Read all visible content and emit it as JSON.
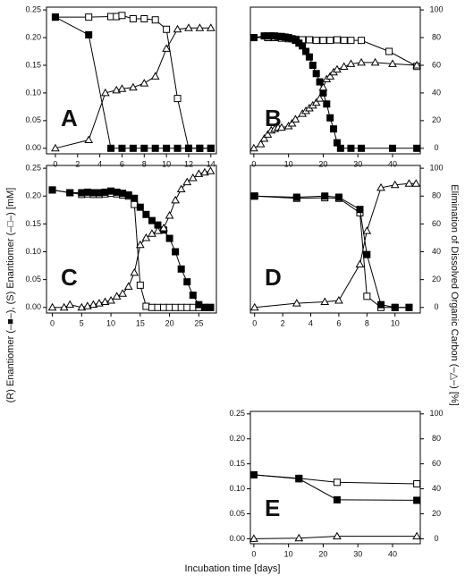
{
  "x_label": "Incubation time [days]",
  "y_label": "(R) Enantiomer (–■–), (S) Enantiomer (–□–) [mM]",
  "y2_label": "Elimination of Dissolved Organic Carbon (–△–) [%]",
  "chart_data": [
    {
      "type": "line",
      "label": "A",
      "tick_label_side": "left",
      "xlim": [
        -0.8,
        14.5
      ],
      "xticks": [
        0,
        2,
        4,
        6,
        8,
        10,
        12,
        14
      ],
      "ylim": [
        -0.01,
        0.255
      ],
      "yticks": [
        {
          "value": 0,
          "label": "0.00"
        },
        {
          "value": 0.05,
          "label": "0.05"
        },
        {
          "value": 0.1,
          "label": "0.10"
        },
        {
          "value": 0.15,
          "label": "0.15"
        },
        {
          "value": 0.2,
          "label": "0.20"
        },
        {
          "value": 0.25,
          "label": "0.25"
        }
      ],
      "y2lim": [
        -4,
        102
      ],
      "y2ticks": [
        0,
        20,
        40,
        60,
        80,
        100
      ],
      "series": [
        {
          "marker": "open-square",
          "color": "#000000",
          "x": [
            0,
            3,
            5,
            5.5,
            6,
            7,
            8,
            9,
            10,
            11,
            12,
            13,
            14
          ],
          "values": [
            0.237,
            0.237,
            0.238,
            0.238,
            0.24,
            0.234,
            0.234,
            0.232,
            0.215,
            0.09,
            0,
            0,
            0
          ]
        },
        {
          "marker": "filled-square",
          "color": "#000000",
          "x": [
            0,
            3,
            5,
            6,
            7,
            8,
            9,
            10,
            11,
            12,
            13,
            14
          ],
          "values": [
            0.237,
            0.205,
            0,
            0,
            0,
            0,
            0,
            0,
            0,
            0,
            0,
            0
          ]
        },
        {
          "marker": "triangle",
          "color": "#000000",
          "axis": "y2",
          "x": [
            0,
            3,
            4.5,
            5.5,
            6,
            7,
            8,
            9,
            10,
            11,
            12,
            13,
            14
          ],
          "values": [
            0,
            6,
            40,
            42,
            43,
            44,
            47,
            52,
            72,
            86,
            87,
            87,
            87
          ]
        }
      ]
    },
    {
      "type": "line",
      "label": "B",
      "tick_label_side": "right",
      "xlim": [
        -1,
        48
      ],
      "xticks": [
        0,
        10,
        20,
        30,
        40
      ],
      "ylim": [
        -0.01,
        0.255
      ],
      "yticks": [
        {
          "value": 0,
          "label": "0.00"
        },
        {
          "value": 0.05,
          "label": "0.05"
        },
        {
          "value": 0.1,
          "label": "0.10"
        },
        {
          "value": 0.15,
          "label": "0.15"
        },
        {
          "value": 0.2,
          "label": "0.20"
        },
        {
          "value": 0.25,
          "label": "0.25"
        }
      ],
      "y2lim": [
        -4,
        102
      ],
      "y2ticks": [
        0,
        20,
        40,
        60,
        80,
        100
      ],
      "series": [
        {
          "marker": "open-square",
          "color": "#000000",
          "x": [
            0,
            4,
            6,
            8,
            10,
            12,
            14,
            16,
            18,
            20,
            22,
            24,
            26,
            28,
            31,
            39,
            47
          ],
          "values": [
            0.2,
            0.2,
            0.2,
            0.199,
            0.198,
            0.197,
            0.196,
            0.196,
            0.195,
            0.195,
            0.195,
            0.196,
            0.195,
            0.195,
            0.195,
            0.175,
            0.148
          ]
        },
        {
          "marker": "filled-square",
          "color": "#000000",
          "x": [
            0,
            3,
            4,
            5,
            6,
            7,
            8,
            9,
            10,
            11,
            12,
            13,
            14,
            15,
            16,
            17,
            18,
            19,
            20,
            21,
            22,
            23,
            24,
            25,
            28,
            31,
            40,
            47
          ],
          "values": [
            0.2,
            0.203,
            0.203,
            0.203,
            0.203,
            0.202,
            0.202,
            0.201,
            0.2,
            0.198,
            0.195,
            0.19,
            0.185,
            0.175,
            0.165,
            0.15,
            0.135,
            0.12,
            0.1,
            0.08,
            0.055,
            0.035,
            0.01,
            0,
            0,
            0,
            0,
            0
          ]
        },
        {
          "marker": "triangle",
          "color": "#000000",
          "axis": "y2",
          "x": [
            0,
            2,
            3,
            4,
            5,
            6,
            7,
            8,
            10,
            11,
            12,
            14,
            15,
            16,
            17,
            18,
            19,
            20,
            21,
            22,
            23,
            24,
            26,
            28,
            31,
            35,
            40,
            47
          ],
          "values": [
            0,
            3,
            7,
            10,
            13,
            14,
            15,
            15,
            16,
            18,
            21,
            25,
            27,
            29,
            31,
            33,
            36,
            44,
            50,
            52,
            55,
            57,
            59,
            61,
            62,
            62,
            61,
            60
          ]
        }
      ]
    },
    {
      "type": "line",
      "label": "C",
      "tick_label_side": "left",
      "xlim": [
        -1,
        28
      ],
      "xticks": [
        0,
        5,
        10,
        15,
        20,
        25
      ],
      "ylim": [
        -0.01,
        0.255
      ],
      "yticks": [
        {
          "value": 0,
          "label": "0.00"
        },
        {
          "value": 0.05,
          "label": "0.05"
        },
        {
          "value": 0.1,
          "label": "0.10"
        },
        {
          "value": 0.15,
          "label": "0.15"
        },
        {
          "value": 0.2,
          "label": "0.20"
        },
        {
          "value": 0.25,
          "label": "0.25"
        }
      ],
      "y2lim": [
        -4,
        102
      ],
      "y2ticks": [
        0,
        20,
        40,
        60,
        80,
        100
      ],
      "series": [
        {
          "marker": "open-square",
          "color": "#000000",
          "x": [
            0,
            3,
            5,
            6,
            7,
            8,
            9,
            10,
            11,
            12,
            13,
            14,
            15,
            16,
            17,
            18,
            19,
            20,
            21,
            22,
            23,
            24,
            25,
            26,
            27
          ],
          "values": [
            0.211,
            0.206,
            0.203,
            0.204,
            0.203,
            0.203,
            0.204,
            0.205,
            0.204,
            0.202,
            0.2,
            0.185,
            0.04,
            0.002,
            0,
            0,
            0,
            0,
            0,
            0,
            0,
            0,
            0,
            0,
            0
          ]
        },
        {
          "marker": "filled-square",
          "color": "#000000",
          "x": [
            0,
            3,
            5,
            6,
            7,
            8,
            9,
            10,
            11,
            12,
            13,
            14,
            15,
            16,
            17,
            18,
            19,
            20,
            21,
            22,
            23,
            24,
            25,
            26,
            27
          ],
          "values": [
            0.211,
            0.206,
            0.206,
            0.207,
            0.206,
            0.206,
            0.207,
            0.209,
            0.207,
            0.205,
            0.202,
            0.196,
            0.18,
            0.167,
            0.156,
            0.148,
            0.139,
            0.124,
            0.1,
            0.069,
            0.046,
            0.022,
            0.005,
            0,
            0
          ]
        },
        {
          "marker": "triangle",
          "color": "#000000",
          "axis": "y2",
          "x": [
            0,
            2,
            3,
            5,
            6,
            7,
            8,
            9,
            10,
            11,
            12,
            13,
            14,
            15,
            16,
            17,
            18,
            19,
            20,
            21,
            22,
            23,
            24,
            25,
            26,
            27
          ],
          "values": [
            0,
            0,
            2,
            0,
            1,
            2,
            3,
            4,
            5,
            8,
            10,
            15,
            25,
            45,
            50,
            53,
            55,
            57,
            66,
            77,
            85,
            90,
            93,
            96,
            97,
            98
          ]
        }
      ]
    },
    {
      "type": "line",
      "label": "D",
      "tick_label_side": "right",
      "xlim": [
        -0.3,
        11.8
      ],
      "xticks": [
        0,
        2,
        4,
        6,
        8,
        10
      ],
      "ylim": [
        -0.01,
        0.255
      ],
      "yticks": [
        {
          "value": 0,
          "label": "0.00"
        },
        {
          "value": 0.05,
          "label": "0.05"
        },
        {
          "value": 0.1,
          "label": "0.10"
        },
        {
          "value": 0.15,
          "label": "0.15"
        },
        {
          "value": 0.2,
          "label": "0.20"
        },
        {
          "value": 0.25,
          "label": "0.25"
        }
      ],
      "y2lim": [
        -4,
        102
      ],
      "y2ticks": [
        0,
        20,
        40,
        60,
        80,
        100
      ],
      "series": [
        {
          "marker": "open-square",
          "color": "#000000",
          "x": [
            0,
            3,
            5,
            6,
            7.5,
            8,
            9,
            10,
            11
          ],
          "values": [
            0.2,
            0.196,
            0.197,
            0.196,
            0.17,
            0.02,
            0,
            0,
            0
          ]
        },
        {
          "marker": "filled-square",
          "color": "#000000",
          "x": [
            0,
            3,
            5,
            6,
            7.5,
            8,
            9,
            10,
            11
          ],
          "values": [
            0.2,
            0.198,
            0.2,
            0.198,
            0.176,
            0.095,
            0.005,
            0,
            0
          ]
        },
        {
          "marker": "triangle",
          "color": "#000000",
          "axis": "y2",
          "x": [
            0,
            3,
            5,
            6,
            7.5,
            8,
            9,
            10,
            11,
            11.5
          ],
          "values": [
            0,
            3,
            4,
            5,
            31,
            55,
            86,
            88,
            89,
            89
          ]
        }
      ]
    },
    {
      "type": "line",
      "label": "E",
      "tick_label_side": "both",
      "xlim": [
        -1,
        48
      ],
      "xticks": [
        0,
        10,
        20,
        30,
        40
      ],
      "ylim": [
        -0.01,
        0.255
      ],
      "yticks": [
        {
          "value": 0,
          "label": "0.00"
        },
        {
          "value": 0.05,
          "label": "0.05"
        },
        {
          "value": 0.1,
          "label": "0.10"
        },
        {
          "value": 0.15,
          "label": "0.15"
        },
        {
          "value": 0.2,
          "label": "0.20"
        },
        {
          "value": 0.25,
          "label": "0.25"
        }
      ],
      "y2lim": [
        -4,
        102
      ],
      "y2ticks": [
        0,
        20,
        40,
        60,
        80,
        100
      ],
      "series": [
        {
          "marker": "open-square",
          "color": "#000000",
          "x": [
            0,
            13,
            24,
            47
          ],
          "values": [
            0.128,
            0.121,
            0.113,
            0.11
          ]
        },
        {
          "marker": "filled-square",
          "color": "#000000",
          "x": [
            0,
            13,
            24,
            47
          ],
          "values": [
            0.128,
            0.12,
            0.078,
            0.077
          ]
        },
        {
          "marker": "triangle",
          "color": "#000000",
          "axis": "y2",
          "x": [
            0,
            13,
            24,
            47
          ],
          "values": [
            0,
            0.5,
            2,
            2
          ]
        }
      ]
    }
  ]
}
